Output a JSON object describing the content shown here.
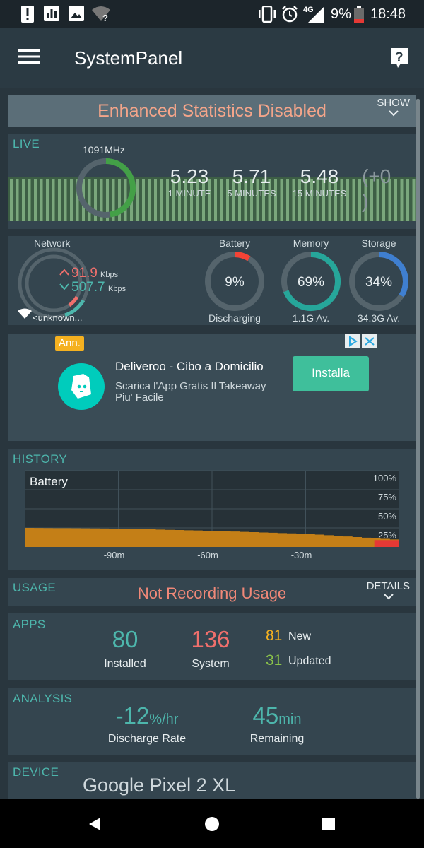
{
  "status_bar": {
    "battery_percent": "9%",
    "network_type": "4G",
    "time": "18:48",
    "icons": [
      "alert-icon",
      "chart-icon",
      "image-icon",
      "wifi-question-icon",
      "vibrate-icon",
      "alarm-icon",
      "signal-icon",
      "battery-icon"
    ]
  },
  "app_bar": {
    "title": "SystemPanel",
    "menu_icon": "hamburger-menu-icon",
    "help_icon": "help-icon"
  },
  "enhanced": {
    "title": "Enhanced Statistics Disabled",
    "show_label": "SHOW"
  },
  "live": {
    "label": "LIVE",
    "cpu_freq": "1091MHz",
    "load_values": [
      "5.23",
      "5.71",
      "5.48"
    ],
    "load_labels": [
      "1 MINUTE",
      "5 MINUTES",
      "15 MINUTES"
    ],
    "load_extra_top": "(+0",
    "load_extra_bottom": ")",
    "cpu_usage_fraction": 0.45
  },
  "gauges": {
    "network": {
      "label": "Network",
      "up_value": "91.9",
      "up_unit": "Kbps",
      "down_value": "507.7",
      "down_unit": "Kbps",
      "ssid": "<unknown..."
    },
    "battery": {
      "label": "Battery",
      "value": "9%",
      "sub": "Discharging",
      "fraction": 0.09,
      "color": "#f44336"
    },
    "memory": {
      "label": "Memory",
      "value": "69%",
      "sub": "1.1G Av.",
      "fraction": 0.69,
      "color": "#26a69a"
    },
    "storage": {
      "label": "Storage",
      "value": "34%",
      "sub": "34.3G Av.",
      "fraction": 0.34,
      "color": "#3f7fd0"
    }
  },
  "ad": {
    "badge": "Ann.",
    "title": "Deliveroo - Cibo a Domicilio",
    "desc_line1": "Scarica l'App Gratis Il Takeaway",
    "desc_line2": "Piu' Facile",
    "button": "Installa"
  },
  "history": {
    "label": "HISTORY",
    "chart_title": "Battery"
  },
  "chart_data": {
    "type": "area",
    "title": "Battery",
    "x_labels": [
      "-90m",
      "-60m",
      "-30m"
    ],
    "y_labels": [
      "100%",
      "75%",
      "50%",
      "25%"
    ],
    "ylim": [
      0,
      100
    ],
    "x": [
      -120,
      -90,
      -60,
      -30,
      0
    ],
    "values": [
      25,
      24,
      21,
      17,
      9
    ],
    "grid": true
  },
  "usage": {
    "label": "USAGE",
    "status": "Not Recording Usage",
    "details_label": "DETAILS"
  },
  "apps": {
    "label": "APPS",
    "installed_value": "80",
    "installed_label": "Installed",
    "system_value": "136",
    "system_label": "System",
    "new_value": "81",
    "new_label": "New",
    "updated_value": "31",
    "updated_label": "Updated"
  },
  "analysis": {
    "label": "ANALYSIS",
    "rate_value": "-12",
    "rate_unit": "%/hr",
    "rate_label": "Discharge Rate",
    "remaining_value": "45",
    "remaining_unit": "min",
    "remaining_label": "Remaining"
  },
  "device": {
    "label": "DEVICE",
    "name": "Google Pixel 2 XL"
  },
  "colors": {
    "accent_teal": "#4db6ac",
    "salmon": "#f08878",
    "orange_chart": "#c47f17",
    "green_live": "#4caf50"
  }
}
